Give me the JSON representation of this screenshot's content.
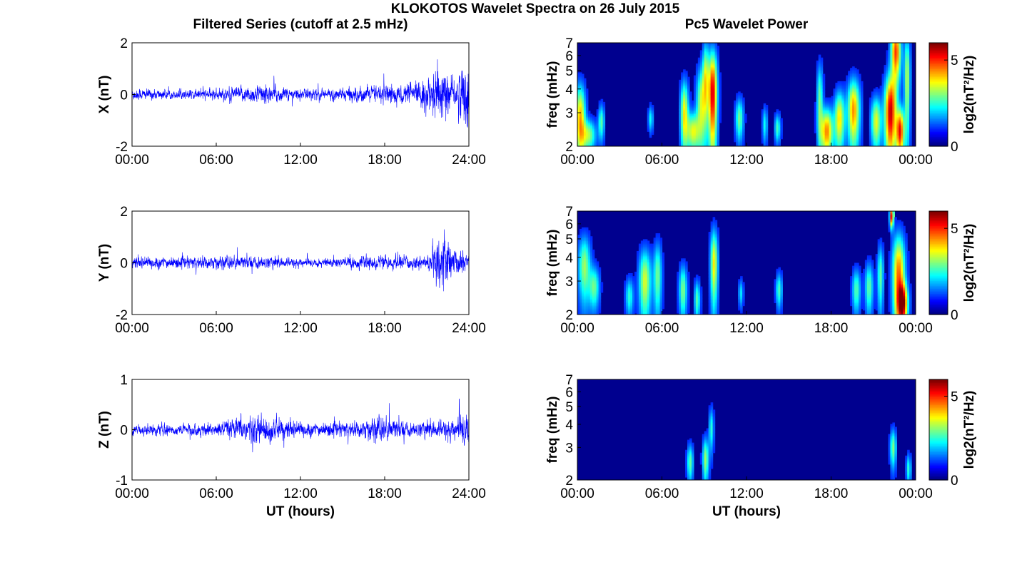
{
  "figure": {
    "suptitle": "KLOKOTOS Wavelet Spectra on 26 July 2015",
    "left_title": "Filtered Series (cutoff at 2.5 mHz)",
    "right_title": "Pc5 Wavelet Power"
  },
  "colors": {
    "trace": "#0000ff",
    "spectrum_background": "#00008f",
    "colormap": "jet"
  },
  "chart_data": [
    {
      "type": "line",
      "panel": "X",
      "ylabel": "X (nT)",
      "xlabel": "",
      "x_ticks": [
        "00:00",
        "06:00",
        "12:00",
        "18:00",
        "24:00"
      ],
      "xlim_hours": [
        0,
        24
      ],
      "ylim": [
        -2,
        2
      ],
      "y_ticks": [
        "-2",
        "0",
        "2"
      ],
      "noise_envelope": [
        {
          "t": 0,
          "amp": 0.18
        },
        {
          "t": 3,
          "amp": 0.12
        },
        {
          "t": 5,
          "amp": 0.14
        },
        {
          "t": 7,
          "amp": 0.18
        },
        {
          "t": 9,
          "amp": 0.28
        },
        {
          "t": 12,
          "amp": 0.16
        },
        {
          "t": 15,
          "amp": 0.18
        },
        {
          "t": 18,
          "amp": 0.28
        },
        {
          "t": 20,
          "amp": 0.3
        },
        {
          "t": 22.2,
          "amp": 0.75
        },
        {
          "t": 23,
          "amp": 0.4
        },
        {
          "t": 24,
          "amp": 1.2
        }
      ]
    },
    {
      "type": "line",
      "panel": "Y",
      "ylabel": "Y (nT)",
      "xlabel": "",
      "x_ticks": [
        "00:00",
        "06:00",
        "12:00",
        "18:00",
        "24:00"
      ],
      "xlim_hours": [
        0,
        24
      ],
      "ylim": [
        -2,
        2
      ],
      "y_ticks": [
        "-2",
        "0",
        "2"
      ],
      "noise_envelope": [
        {
          "t": 0,
          "amp": 0.2
        },
        {
          "t": 3,
          "amp": 0.16
        },
        {
          "t": 6,
          "amp": 0.2
        },
        {
          "t": 9,
          "amp": 0.18
        },
        {
          "t": 12,
          "amp": 0.12
        },
        {
          "t": 15,
          "amp": 0.16
        },
        {
          "t": 18,
          "amp": 0.2
        },
        {
          "t": 21,
          "amp": 0.18
        },
        {
          "t": 22.2,
          "amp": 0.9
        },
        {
          "t": 23,
          "amp": 0.35
        },
        {
          "t": 24,
          "amp": 0.3
        }
      ]
    },
    {
      "type": "line",
      "panel": "Z",
      "ylabel": "Z (nT)",
      "xlabel": "UT (hours)",
      "x_ticks": [
        "00:00",
        "06:00",
        "12:00",
        "18:00",
        "24:00"
      ],
      "xlim_hours": [
        0,
        24
      ],
      "ylim": [
        -1,
        1
      ],
      "y_ticks": [
        "-1",
        "0",
        "1"
      ],
      "noise_envelope": [
        {
          "t": 0,
          "amp": 0.08
        },
        {
          "t": 3,
          "amp": 0.08
        },
        {
          "t": 6,
          "amp": 0.1
        },
        {
          "t": 8.5,
          "amp": 0.22
        },
        {
          "t": 10,
          "amp": 0.18
        },
        {
          "t": 13,
          "amp": 0.1
        },
        {
          "t": 16,
          "amp": 0.12
        },
        {
          "t": 17.5,
          "amp": 0.2
        },
        {
          "t": 20,
          "amp": 0.1
        },
        {
          "t": 23,
          "amp": 0.15
        },
        {
          "t": 24,
          "amp": 0.35
        }
      ]
    },
    {
      "type": "heatmap",
      "panel": "X power",
      "ylabel": "freq (mHz)",
      "xlabel": "",
      "x_ticks": [
        "00:00",
        "06:00",
        "12:00",
        "18:00",
        "00:00"
      ],
      "xlim_hours": [
        0,
        24
      ],
      "ylim_mhz": [
        2,
        7
      ],
      "y_scale": "log",
      "y_ticks": [
        "2",
        "3",
        "4",
        "5",
        "6",
        "7"
      ],
      "colorbar_label": "log2(nT²/Hz)",
      "colorbar_ticks": [
        "0",
        "5"
      ],
      "clim": [
        0,
        6
      ],
      "blobs": [
        {
          "t": 0.2,
          "f": 2.8,
          "dt": 0.25,
          "df": 0.9,
          "p": 4.0
        },
        {
          "t": 0.8,
          "f": 2.3,
          "dt": 0.35,
          "df": 0.3,
          "p": 2.8
        },
        {
          "t": 1.7,
          "f": 2.7,
          "dt": 0.15,
          "df": 0.4,
          "p": 2.3
        },
        {
          "t": 5.2,
          "f": 2.8,
          "dt": 0.12,
          "df": 0.3,
          "p": 1.8
        },
        {
          "t": 7.6,
          "f": 3.0,
          "dt": 0.2,
          "df": 0.9,
          "p": 3.5
        },
        {
          "t": 8.2,
          "f": 2.4,
          "dt": 0.3,
          "df": 0.4,
          "p": 3.2
        },
        {
          "t": 8.8,
          "f": 3.3,
          "dt": 0.25,
          "df": 1.2,
          "p": 3.0
        },
        {
          "t": 9.6,
          "f": 3.8,
          "dt": 0.22,
          "df": 1.6,
          "p": 5.5
        },
        {
          "t": 9.1,
          "f": 4.8,
          "dt": 0.15,
          "df": 1.5,
          "p": 2.6
        },
        {
          "t": 11.5,
          "f": 2.8,
          "dt": 0.2,
          "df": 0.5,
          "p": 2.5
        },
        {
          "t": 13.3,
          "f": 2.6,
          "dt": 0.12,
          "df": 0.4,
          "p": 1.8
        },
        {
          "t": 14.2,
          "f": 2.5,
          "dt": 0.15,
          "df": 0.3,
          "p": 2.2
        },
        {
          "t": 17.2,
          "f": 3.5,
          "dt": 0.15,
          "df": 1.2,
          "p": 2.5
        },
        {
          "t": 17.7,
          "f": 2.4,
          "dt": 0.3,
          "df": 0.5,
          "p": 4.3
        },
        {
          "t": 18.6,
          "f": 2.8,
          "dt": 0.25,
          "df": 0.7,
          "p": 3.6
        },
        {
          "t": 19.6,
          "f": 3.1,
          "dt": 0.3,
          "df": 0.9,
          "p": 4.2
        },
        {
          "t": 21.2,
          "f": 2.7,
          "dt": 0.25,
          "df": 0.6,
          "p": 3.3
        },
        {
          "t": 22.2,
          "f": 3.0,
          "dt": 0.28,
          "df": 1.1,
          "p": 5.5
        },
        {
          "t": 22.9,
          "f": 2.4,
          "dt": 0.2,
          "df": 0.5,
          "p": 5.0
        },
        {
          "t": 22.6,
          "f": 6.3,
          "dt": 0.25,
          "df": 1.5,
          "p": 4.8
        },
        {
          "t": 23.4,
          "f": 4.5,
          "dt": 0.15,
          "df": 2.0,
          "p": 3.0
        }
      ]
    },
    {
      "type": "heatmap",
      "panel": "Y power",
      "ylabel": "freq (mHz)",
      "xlabel": "",
      "x_ticks": [
        "00:00",
        "06:00",
        "12:00",
        "18:00",
        "00:00"
      ],
      "xlim_hours": [
        0,
        24
      ],
      "ylim_mhz": [
        2,
        7
      ],
      "y_scale": "log",
      "y_ticks": [
        "2",
        "3",
        "4",
        "5",
        "6",
        "7"
      ],
      "colorbar_label": "log2(nT²/Hz)",
      "colorbar_ticks": [
        "0",
        "5"
      ],
      "clim": [
        0,
        6
      ],
      "blobs": [
        {
          "t": 0.5,
          "f": 3.6,
          "dt": 0.3,
          "df": 1.0,
          "p": 2.8
        },
        {
          "t": 1.2,
          "f": 2.8,
          "dt": 0.25,
          "df": 0.5,
          "p": 2.4
        },
        {
          "t": 3.7,
          "f": 2.5,
          "dt": 0.2,
          "df": 0.4,
          "p": 2.0
        },
        {
          "t": 4.8,
          "f": 3.0,
          "dt": 0.3,
          "df": 0.9,
          "p": 3.2
        },
        {
          "t": 5.7,
          "f": 3.2,
          "dt": 0.2,
          "df": 1.0,
          "p": 2.5
        },
        {
          "t": 7.5,
          "f": 2.7,
          "dt": 0.2,
          "df": 0.6,
          "p": 2.6
        },
        {
          "t": 8.5,
          "f": 2.4,
          "dt": 0.15,
          "df": 0.4,
          "p": 2.3
        },
        {
          "t": 9.7,
          "f": 3.7,
          "dt": 0.18,
          "df": 1.2,
          "p": 3.6
        },
        {
          "t": 11.6,
          "f": 2.6,
          "dt": 0.12,
          "df": 0.3,
          "p": 1.6
        },
        {
          "t": 14.3,
          "f": 2.7,
          "dt": 0.15,
          "df": 0.4,
          "p": 2.2
        },
        {
          "t": 19.8,
          "f": 2.7,
          "dt": 0.2,
          "df": 0.5,
          "p": 2.3
        },
        {
          "t": 20.7,
          "f": 2.8,
          "dt": 0.2,
          "df": 0.6,
          "p": 2.4
        },
        {
          "t": 21.5,
          "f": 3.2,
          "dt": 0.15,
          "df": 0.9,
          "p": 2.4
        },
        {
          "t": 22.8,
          "f": 3.2,
          "dt": 0.3,
          "df": 1.3,
          "p": 4.5
        },
        {
          "t": 23.1,
          "f": 2.3,
          "dt": 0.25,
          "df": 0.4,
          "p": 4.6
        },
        {
          "t": 22.3,
          "f": 6.6,
          "dt": 0.1,
          "df": 0.6,
          "p": 5.2
        }
      ]
    },
    {
      "type": "heatmap",
      "panel": "Z power",
      "ylabel": "freq (mHz)",
      "xlabel": "UT (hours)",
      "x_ticks": [
        "00:00",
        "06:00",
        "12:00",
        "18:00",
        "00:00"
      ],
      "xlim_hours": [
        0,
        24
      ],
      "ylim_mhz": [
        2,
        7
      ],
      "y_scale": "log",
      "y_ticks": [
        "2",
        "3",
        "4",
        "5",
        "6",
        "7"
      ],
      "colorbar_label": "log2(nT²/Hz)",
      "colorbar_ticks": [
        "0",
        "5"
      ],
      "clim": [
        0,
        6
      ],
      "blobs": [
        {
          "t": 8.0,
          "f": 2.5,
          "dt": 0.15,
          "df": 0.4,
          "p": 2.4
        },
        {
          "t": 9.1,
          "f": 2.6,
          "dt": 0.15,
          "df": 0.5,
          "p": 2.8
        },
        {
          "t": 9.5,
          "f": 3.8,
          "dt": 0.12,
          "df": 0.7,
          "p": 2.0
        },
        {
          "t": 22.4,
          "f": 3.0,
          "dt": 0.15,
          "df": 0.5,
          "p": 2.6
        },
        {
          "t": 23.5,
          "f": 2.3,
          "dt": 0.12,
          "df": 0.3,
          "p": 2.0
        }
      ]
    }
  ]
}
